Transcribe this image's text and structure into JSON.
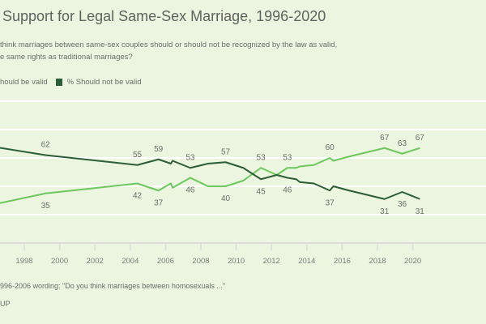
{
  "title": "Support for Legal Same-Sex Marriage, 1996-2020",
  "subtitle_lines": [
    "think marriages between same-sex couples should or should not be recognized by the law as valid,",
    "e same rights as traditional marriages?"
  ],
  "legend": [
    {
      "label": "hould be valid",
      "color": "#6cc75c"
    },
    {
      "label": "% Should not be valid",
      "color": "#2a5d38"
    }
  ],
  "footnote": "996-2006 wording: \"Do you think marriages between homosexuals ...\"",
  "source": "UP",
  "chart_data": {
    "type": "line",
    "title": "Support for Legal Same-Sex Marriage, 1996-2020",
    "xlabel": "",
    "ylabel": "",
    "xlim": [
      1996.6,
      2020.5
    ],
    "ylim": [
      0,
      80
    ],
    "grid": true,
    "gridlines": [
      20,
      40,
      60,
      80
    ],
    "x_ticks": [
      "1998",
      "2000",
      "2002",
      "2004",
      "2006",
      "2008",
      "2010",
      "2012",
      "2014",
      "2016",
      "2018",
      "2020"
    ],
    "series": [
      {
        "name": "% Should be valid",
        "color": "#6cc75c",
        "points": [
          [
            1996.2,
            27
          ],
          [
            1999.2,
            35
          ],
          [
            2004.4,
            42
          ],
          [
            2005.6,
            37
          ],
          [
            2006.3,
            42
          ],
          [
            2006.4,
            39
          ],
          [
            2007.4,
            46
          ],
          [
            2008.4,
            40
          ],
          [
            2009.4,
            40
          ],
          [
            2010.4,
            44
          ],
          [
            2011.4,
            53
          ],
          [
            2012.3,
            48
          ],
          [
            2012.9,
            53
          ],
          [
            2013.4,
            53
          ],
          [
            2013.6,
            54
          ],
          [
            2014.4,
            55
          ],
          [
            2015.3,
            60
          ],
          [
            2015.5,
            58
          ],
          [
            2016.4,
            61
          ],
          [
            2017.4,
            64
          ],
          [
            2018.4,
            67
          ],
          [
            2019.4,
            63
          ],
          [
            2020.4,
            67
          ]
        ]
      },
      {
        "name": "% Should not be valid",
        "color": "#2a5d38",
        "points": [
          [
            1996.2,
            68
          ],
          [
            1999.2,
            62
          ],
          [
            2004.4,
            55
          ],
          [
            2005.6,
            59
          ],
          [
            2006.3,
            56
          ],
          [
            2006.4,
            58
          ],
          [
            2007.4,
            53
          ],
          [
            2008.4,
            56
          ],
          [
            2009.4,
            57
          ],
          [
            2010.4,
            53
          ],
          [
            2011.4,
            45
          ],
          [
            2012.3,
            48
          ],
          [
            2012.9,
            46
          ],
          [
            2013.4,
            45
          ],
          [
            2013.6,
            43
          ],
          [
            2014.4,
            42
          ],
          [
            2015.3,
            37
          ],
          [
            2015.5,
            40
          ],
          [
            2016.4,
            37
          ],
          [
            2017.4,
            34
          ],
          [
            2018.4,
            31
          ],
          [
            2019.4,
            36
          ],
          [
            2020.4,
            31
          ]
        ]
      }
    ],
    "data_labels": [
      {
        "year": 1999.2,
        "value": 35,
        "text": "35",
        "placement": "below"
      },
      {
        "year": 2004.4,
        "value": 42,
        "text": "42",
        "placement": "below"
      },
      {
        "year": 2005.6,
        "value": 37,
        "text": "37",
        "placement": "below"
      },
      {
        "year": 2007.4,
        "value": 46,
        "text": "46",
        "placement": "below"
      },
      {
        "year": 2009.4,
        "value": 40,
        "text": "40",
        "placement": "below"
      },
      {
        "year": 2011.4,
        "value": 53,
        "text": "53",
        "placement": "above"
      },
      {
        "year": 2012.9,
        "value": 53,
        "text": "53",
        "placement": "above"
      },
      {
        "year": 2015.3,
        "value": 60,
        "text": "60",
        "placement": "above"
      },
      {
        "year": 2018.4,
        "value": 67,
        "text": "67",
        "placement": "above"
      },
      {
        "year": 2019.4,
        "value": 63,
        "text": "63",
        "placement": "above"
      },
      {
        "year": 2020.4,
        "value": 67,
        "text": "67",
        "placement": "above"
      },
      {
        "year": 1999.2,
        "value": 62,
        "text": "62",
        "placement": "above"
      },
      {
        "year": 2004.4,
        "value": 55,
        "text": "55",
        "placement": "above"
      },
      {
        "year": 2005.6,
        "value": 59,
        "text": "59",
        "placement": "above"
      },
      {
        "year": 2007.4,
        "value": 53,
        "text": "53",
        "placement": "above"
      },
      {
        "year": 2009.4,
        "value": 57,
        "text": "57",
        "placement": "above"
      },
      {
        "year": 2011.4,
        "value": 45,
        "text": "45",
        "placement": "below"
      },
      {
        "year": 2012.9,
        "value": 46,
        "text": "46",
        "placement": "below"
      },
      {
        "year": 2015.3,
        "value": 37,
        "text": "37",
        "placement": "below"
      },
      {
        "year": 2018.4,
        "value": 31,
        "text": "31",
        "placement": "below"
      },
      {
        "year": 2019.4,
        "value": 36,
        "text": "36",
        "placement": "below"
      },
      {
        "year": 2020.4,
        "value": 31,
        "text": "31",
        "placement": "below"
      }
    ]
  }
}
